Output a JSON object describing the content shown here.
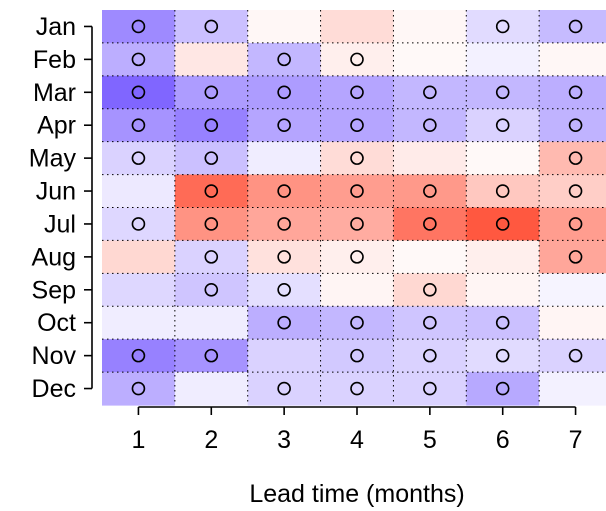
{
  "chart_data": {
    "type": "heatmap",
    "title": "",
    "xlabel": "Lead time (months)",
    "ylabel": "",
    "x": [
      1,
      2,
      3,
      4,
      5,
      6,
      7
    ],
    "y": [
      "Jan",
      "Feb",
      "Mar",
      "Apr",
      "May",
      "Jun",
      "Jul",
      "Aug",
      "Sep",
      "Oct",
      "Nov",
      "Dec"
    ],
    "color_scale": {
      "low": "#6a4bff",
      "mid": "#ffffff",
      "high": "#ff3a1e",
      "range": [
        -1,
        1
      ]
    },
    "grid": true,
    "values": [
      [
        -0.65,
        -0.35,
        0.04,
        0.18,
        0.04,
        -0.2,
        -0.38
      ],
      [
        -0.45,
        0.12,
        -0.4,
        0.08,
        0.03,
        -0.08,
        0.04
      ],
      [
        -0.85,
        -0.55,
        -0.55,
        -0.5,
        -0.4,
        -0.4,
        -0.45
      ],
      [
        -0.6,
        -0.7,
        -0.5,
        -0.5,
        -0.4,
        -0.25,
        -0.42
      ],
      [
        -0.25,
        -0.35,
        -0.1,
        0.18,
        0.1,
        0.03,
        0.35
      ],
      [
        -0.12,
        0.75,
        0.55,
        0.5,
        0.52,
        0.28,
        0.25
      ],
      [
        -0.22,
        0.55,
        0.45,
        0.42,
        0.7,
        0.85,
        0.5
      ],
      [
        0.2,
        -0.25,
        0.15,
        0.08,
        0.03,
        0.08,
        0.45
      ],
      [
        -0.22,
        -0.32,
        -0.18,
        0.05,
        0.2,
        0.05,
        -0.06
      ],
      [
        -0.1,
        -0.1,
        -0.45,
        -0.4,
        -0.32,
        -0.35,
        0.05
      ],
      [
        -0.7,
        -0.6,
        -0.25,
        -0.3,
        -0.25,
        -0.2,
        -0.25
      ],
      [
        -0.45,
        -0.1,
        -0.25,
        -0.25,
        -0.25,
        -0.48,
        -0.08
      ]
    ],
    "markers": [
      [
        1,
        1,
        0,
        0,
        0,
        1,
        1
      ],
      [
        1,
        0,
        1,
        1,
        0,
        0,
        0
      ],
      [
        1,
        1,
        1,
        1,
        1,
        1,
        1
      ],
      [
        1,
        1,
        1,
        1,
        1,
        1,
        1
      ],
      [
        1,
        1,
        0,
        1,
        0,
        0,
        1
      ],
      [
        0,
        1,
        1,
        1,
        1,
        1,
        1
      ],
      [
        1,
        1,
        1,
        1,
        1,
        1,
        1
      ],
      [
        0,
        1,
        1,
        1,
        0,
        0,
        1
      ],
      [
        0,
        1,
        1,
        0,
        1,
        0,
        0
      ],
      [
        0,
        0,
        1,
        1,
        1,
        1,
        0
      ],
      [
        1,
        1,
        0,
        1,
        1,
        1,
        1
      ],
      [
        1,
        0,
        1,
        1,
        1,
        1,
        0
      ]
    ],
    "marker_symbol": "circle"
  }
}
